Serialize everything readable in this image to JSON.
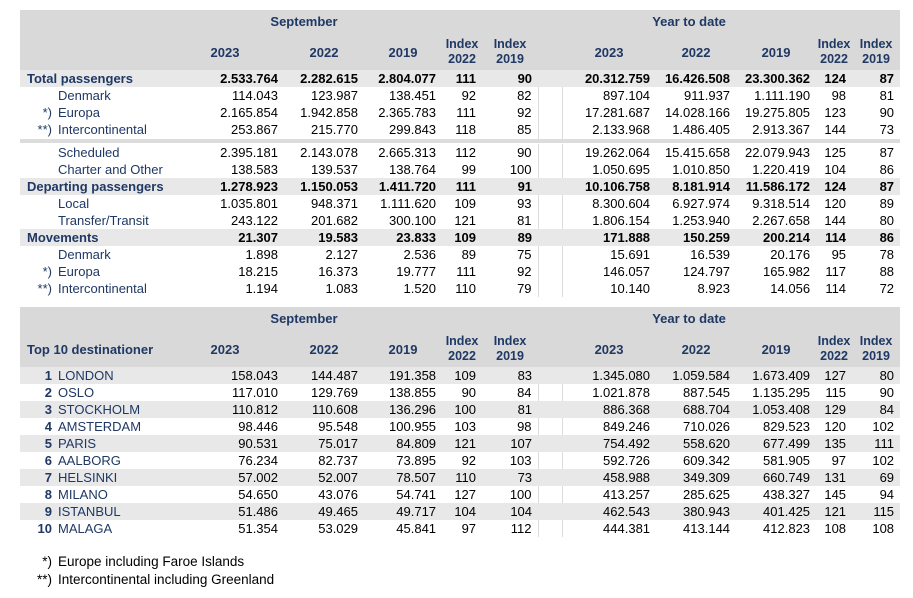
{
  "colors": {
    "header_bg": "#d9d9d9",
    "stripe_bg": "#e8e8e8",
    "label_navy": "#1f3864",
    "number_black": "#000000"
  },
  "header": {
    "september": "September",
    "ytd": "Year to date",
    "years": [
      "2023",
      "2022",
      "2019"
    ],
    "index_2022": "Index\n2022",
    "index_2019": "Index\n2019"
  },
  "table1": {
    "title": "",
    "rows": [
      {
        "t": "total",
        "label": "Total passengers",
        "v": [
          "2.533.764",
          "2.282.615",
          "2.804.077",
          "111",
          "90",
          "20.312.759",
          "16.426.508",
          "23.300.362",
          "124",
          "87"
        ]
      },
      {
        "t": "row",
        "m": "",
        "label": "Denmark",
        "v": [
          "114.043",
          "123.987",
          "138.451",
          "92",
          "82",
          "897.104",
          "911.937",
          "1.111.190",
          "98",
          "81"
        ]
      },
      {
        "t": "row",
        "m": "*)",
        "label": "Europa",
        "v": [
          "2.165.854",
          "1.942.858",
          "2.365.783",
          "111",
          "92",
          "17.281.687",
          "14.028.166",
          "19.275.805",
          "123",
          "90"
        ]
      },
      {
        "t": "row",
        "m": "**)",
        "label": "Intercontinental",
        "v": [
          "253.867",
          "215.770",
          "299.843",
          "118",
          "85",
          "2.133.968",
          "1.486.405",
          "2.913.367",
          "144",
          "73"
        ]
      },
      {
        "t": "sep"
      },
      {
        "t": "row",
        "m": "",
        "label": "Scheduled",
        "v": [
          "2.395.181",
          "2.143.078",
          "2.665.313",
          "112",
          "90",
          "19.262.064",
          "15.415.658",
          "22.079.943",
          "125",
          "87"
        ]
      },
      {
        "t": "row",
        "m": "",
        "label": "Charter and Other",
        "v": [
          "138.583",
          "139.537",
          "138.764",
          "99",
          "100",
          "1.050.695",
          "1.010.850",
          "1.220.419",
          "104",
          "86"
        ]
      },
      {
        "t": "total",
        "label": "Departing passengers",
        "v": [
          "1.278.923",
          "1.150.053",
          "1.411.720",
          "111",
          "91",
          "10.106.758",
          "8.181.914",
          "11.586.172",
          "124",
          "87"
        ]
      },
      {
        "t": "row",
        "m": "",
        "label": "Local",
        "v": [
          "1.035.801",
          "948.371",
          "1.111.620",
          "109",
          "93",
          "8.300.604",
          "6.927.974",
          "9.318.514",
          "120",
          "89"
        ]
      },
      {
        "t": "row",
        "m": "",
        "label": "Transfer/Transit",
        "v": [
          "243.122",
          "201.682",
          "300.100",
          "121",
          "81",
          "1.806.154",
          "1.253.940",
          "2.267.658",
          "144",
          "80"
        ]
      },
      {
        "t": "total",
        "label": "Movements",
        "v": [
          "21.307",
          "19.583",
          "23.833",
          "109",
          "89",
          "171.888",
          "150.259",
          "200.214",
          "114",
          "86"
        ]
      },
      {
        "t": "row",
        "m": "",
        "label": "Denmark",
        "v": [
          "1.898",
          "2.127",
          "2.536",
          "89",
          "75",
          "15.691",
          "16.539",
          "20.176",
          "95",
          "78"
        ]
      },
      {
        "t": "row",
        "m": "*)",
        "label": "Europa",
        "v": [
          "18.215",
          "16.373",
          "19.777",
          "111",
          "92",
          "146.057",
          "124.797",
          "165.982",
          "117",
          "88"
        ]
      },
      {
        "t": "row",
        "m": "**)",
        "label": "Intercontinental",
        "v": [
          "1.194",
          "1.083",
          "1.520",
          "110",
          "79",
          "10.140",
          "8.923",
          "14.056",
          "114",
          "72"
        ]
      }
    ]
  },
  "table2": {
    "title": "Top 10 destinationer",
    "rows": [
      {
        "t": "alt",
        "m": "1",
        "label": "LONDON",
        "v": [
          "158.043",
          "144.487",
          "191.358",
          "109",
          "83",
          "1.345.080",
          "1.059.584",
          "1.673.409",
          "127",
          "80"
        ]
      },
      {
        "t": "row",
        "m": "2",
        "label": "OSLO",
        "v": [
          "117.010",
          "129.769",
          "138.855",
          "90",
          "84",
          "1.021.878",
          "887.545",
          "1.135.295",
          "115",
          "90"
        ]
      },
      {
        "t": "alt",
        "m": "3",
        "label": "STOCKHOLM",
        "v": [
          "110.812",
          "110.608",
          "136.296",
          "100",
          "81",
          "886.368",
          "688.704",
          "1.053.408",
          "129",
          "84"
        ]
      },
      {
        "t": "row",
        "m": "4",
        "label": "AMSTERDAM",
        "v": [
          "98.446",
          "95.548",
          "100.955",
          "103",
          "98",
          "849.246",
          "710.026",
          "829.523",
          "120",
          "102"
        ]
      },
      {
        "t": "alt",
        "m": "5",
        "label": "PARIS",
        "v": [
          "90.531",
          "75.017",
          "84.809",
          "121",
          "107",
          "754.492",
          "558.620",
          "677.499",
          "135",
          "111"
        ]
      },
      {
        "t": "row",
        "m": "6",
        "label": "AALBORG",
        "v": [
          "76.234",
          "82.737",
          "73.895",
          "92",
          "103",
          "592.726",
          "609.342",
          "581.905",
          "97",
          "102"
        ]
      },
      {
        "t": "alt",
        "m": "7",
        "label": "HELSINKI",
        "v": [
          "57.002",
          "52.007",
          "78.507",
          "110",
          "73",
          "458.988",
          "349.309",
          "660.749",
          "131",
          "69"
        ]
      },
      {
        "t": "row",
        "m": "8",
        "label": "MILANO",
        "v": [
          "54.650",
          "43.076",
          "54.741",
          "127",
          "100",
          "413.257",
          "285.625",
          "438.327",
          "145",
          "94"
        ]
      },
      {
        "t": "alt",
        "m": "9",
        "label": "ISTANBUL",
        "v": [
          "51.486",
          "49.465",
          "49.717",
          "104",
          "104",
          "462.543",
          "380.943",
          "401.425",
          "121",
          "115"
        ]
      },
      {
        "t": "row",
        "m": "10",
        "label": "MALAGA",
        "v": [
          "51.354",
          "53.029",
          "45.841",
          "97",
          "112",
          "444.381",
          "413.144",
          "412.823",
          "108",
          "108"
        ]
      }
    ]
  },
  "footnotes": [
    {
      "marker": "*)",
      "text": "Europe including Faroe Islands"
    },
    {
      "marker": "**)",
      "text": "Intercontinental including Greenland"
    }
  ]
}
